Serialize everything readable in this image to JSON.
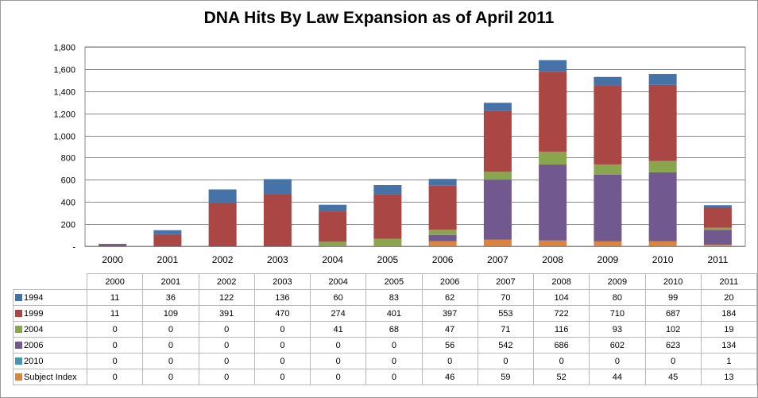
{
  "chart_data": {
    "type": "bar",
    "stacked": true,
    "title": "DNA Hits By Law Expansion as of April 2011",
    "xlabel": "",
    "ylabel": "",
    "categories": [
      "2000",
      "2001",
      "2002",
      "2003",
      "2004",
      "2005",
      "2006",
      "2007",
      "2008",
      "2009",
      "2010",
      "2011"
    ],
    "ylim": [
      0,
      1800
    ],
    "y_ticks": [
      "-",
      "200",
      "400",
      "600",
      "800",
      "1,000",
      "1,200",
      "1,400",
      "1,600",
      "1,800"
    ],
    "grid": true,
    "legend": "data-table",
    "series": [
      {
        "name": "1994",
        "color": "#4572a7",
        "values": [
          11,
          36,
          122,
          136,
          60,
          83,
          62,
          70,
          104,
          80,
          99,
          20
        ]
      },
      {
        "name": "1999",
        "color": "#aa4643",
        "values": [
          11,
          109,
          391,
          470,
          274,
          401,
          397,
          553,
          722,
          710,
          687,
          184
        ]
      },
      {
        "name": "2004",
        "color": "#89a54e",
        "values": [
          0,
          0,
          0,
          0,
          41,
          68,
          47,
          71,
          116,
          93,
          102,
          19
        ]
      },
      {
        "name": "2006",
        "color": "#71588f",
        "values": [
          0,
          0,
          0,
          0,
          0,
          0,
          56,
          542,
          686,
          602,
          623,
          134
        ]
      },
      {
        "name": "2010",
        "color": "#4198af",
        "values": [
          0,
          0,
          0,
          0,
          0,
          0,
          0,
          0,
          0,
          0,
          0,
          1
        ]
      },
      {
        "name": "Subject Index",
        "color": "#db843d",
        "values": [
          0,
          0,
          0,
          0,
          0,
          0,
          46,
          59,
          52,
          44,
          45,
          13
        ]
      }
    ]
  }
}
